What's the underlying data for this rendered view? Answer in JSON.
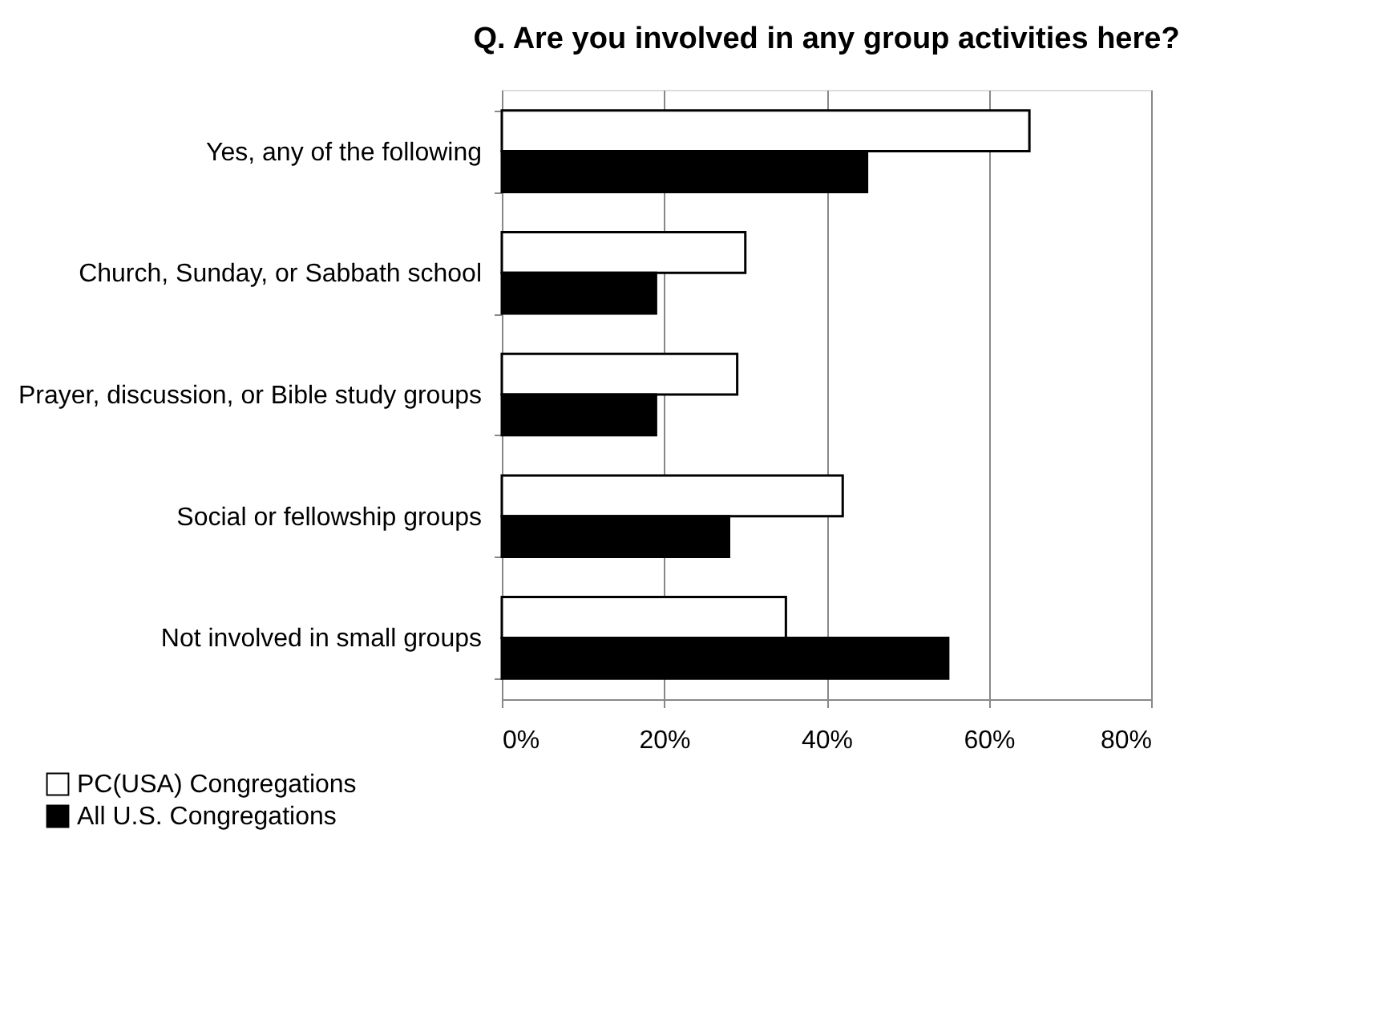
{
  "chart_data": {
    "type": "bar",
    "orientation": "horizontal",
    "title": "Q. Are you involved in any group activities here?",
    "categories": [
      "Yes, any of the following",
      "Church, Sunday, or Sabbath school",
      "Prayer, discussion, or Bible study groups",
      "Social or fellowship groups",
      "Not involved in small groups"
    ],
    "series": [
      {
        "name": "PC(USA) Congregations",
        "color": "#ffffff",
        "values": [
          65,
          30,
          29,
          42,
          35
        ]
      },
      {
        "name": "All U.S. Congregations",
        "color": "#000000",
        "values": [
          45,
          19,
          19,
          28,
          55
        ]
      }
    ],
    "xlim": [
      0,
      80
    ],
    "xticks": [
      {
        "value": 0,
        "label": "0%"
      },
      {
        "value": 20,
        "label": "20%"
      },
      {
        "value": 40,
        "label": "40%"
      },
      {
        "value": 60,
        "label": "60%"
      },
      {
        "value": 80,
        "label": "80%"
      }
    ],
    "grid": "x",
    "legend": "bottom left"
  }
}
